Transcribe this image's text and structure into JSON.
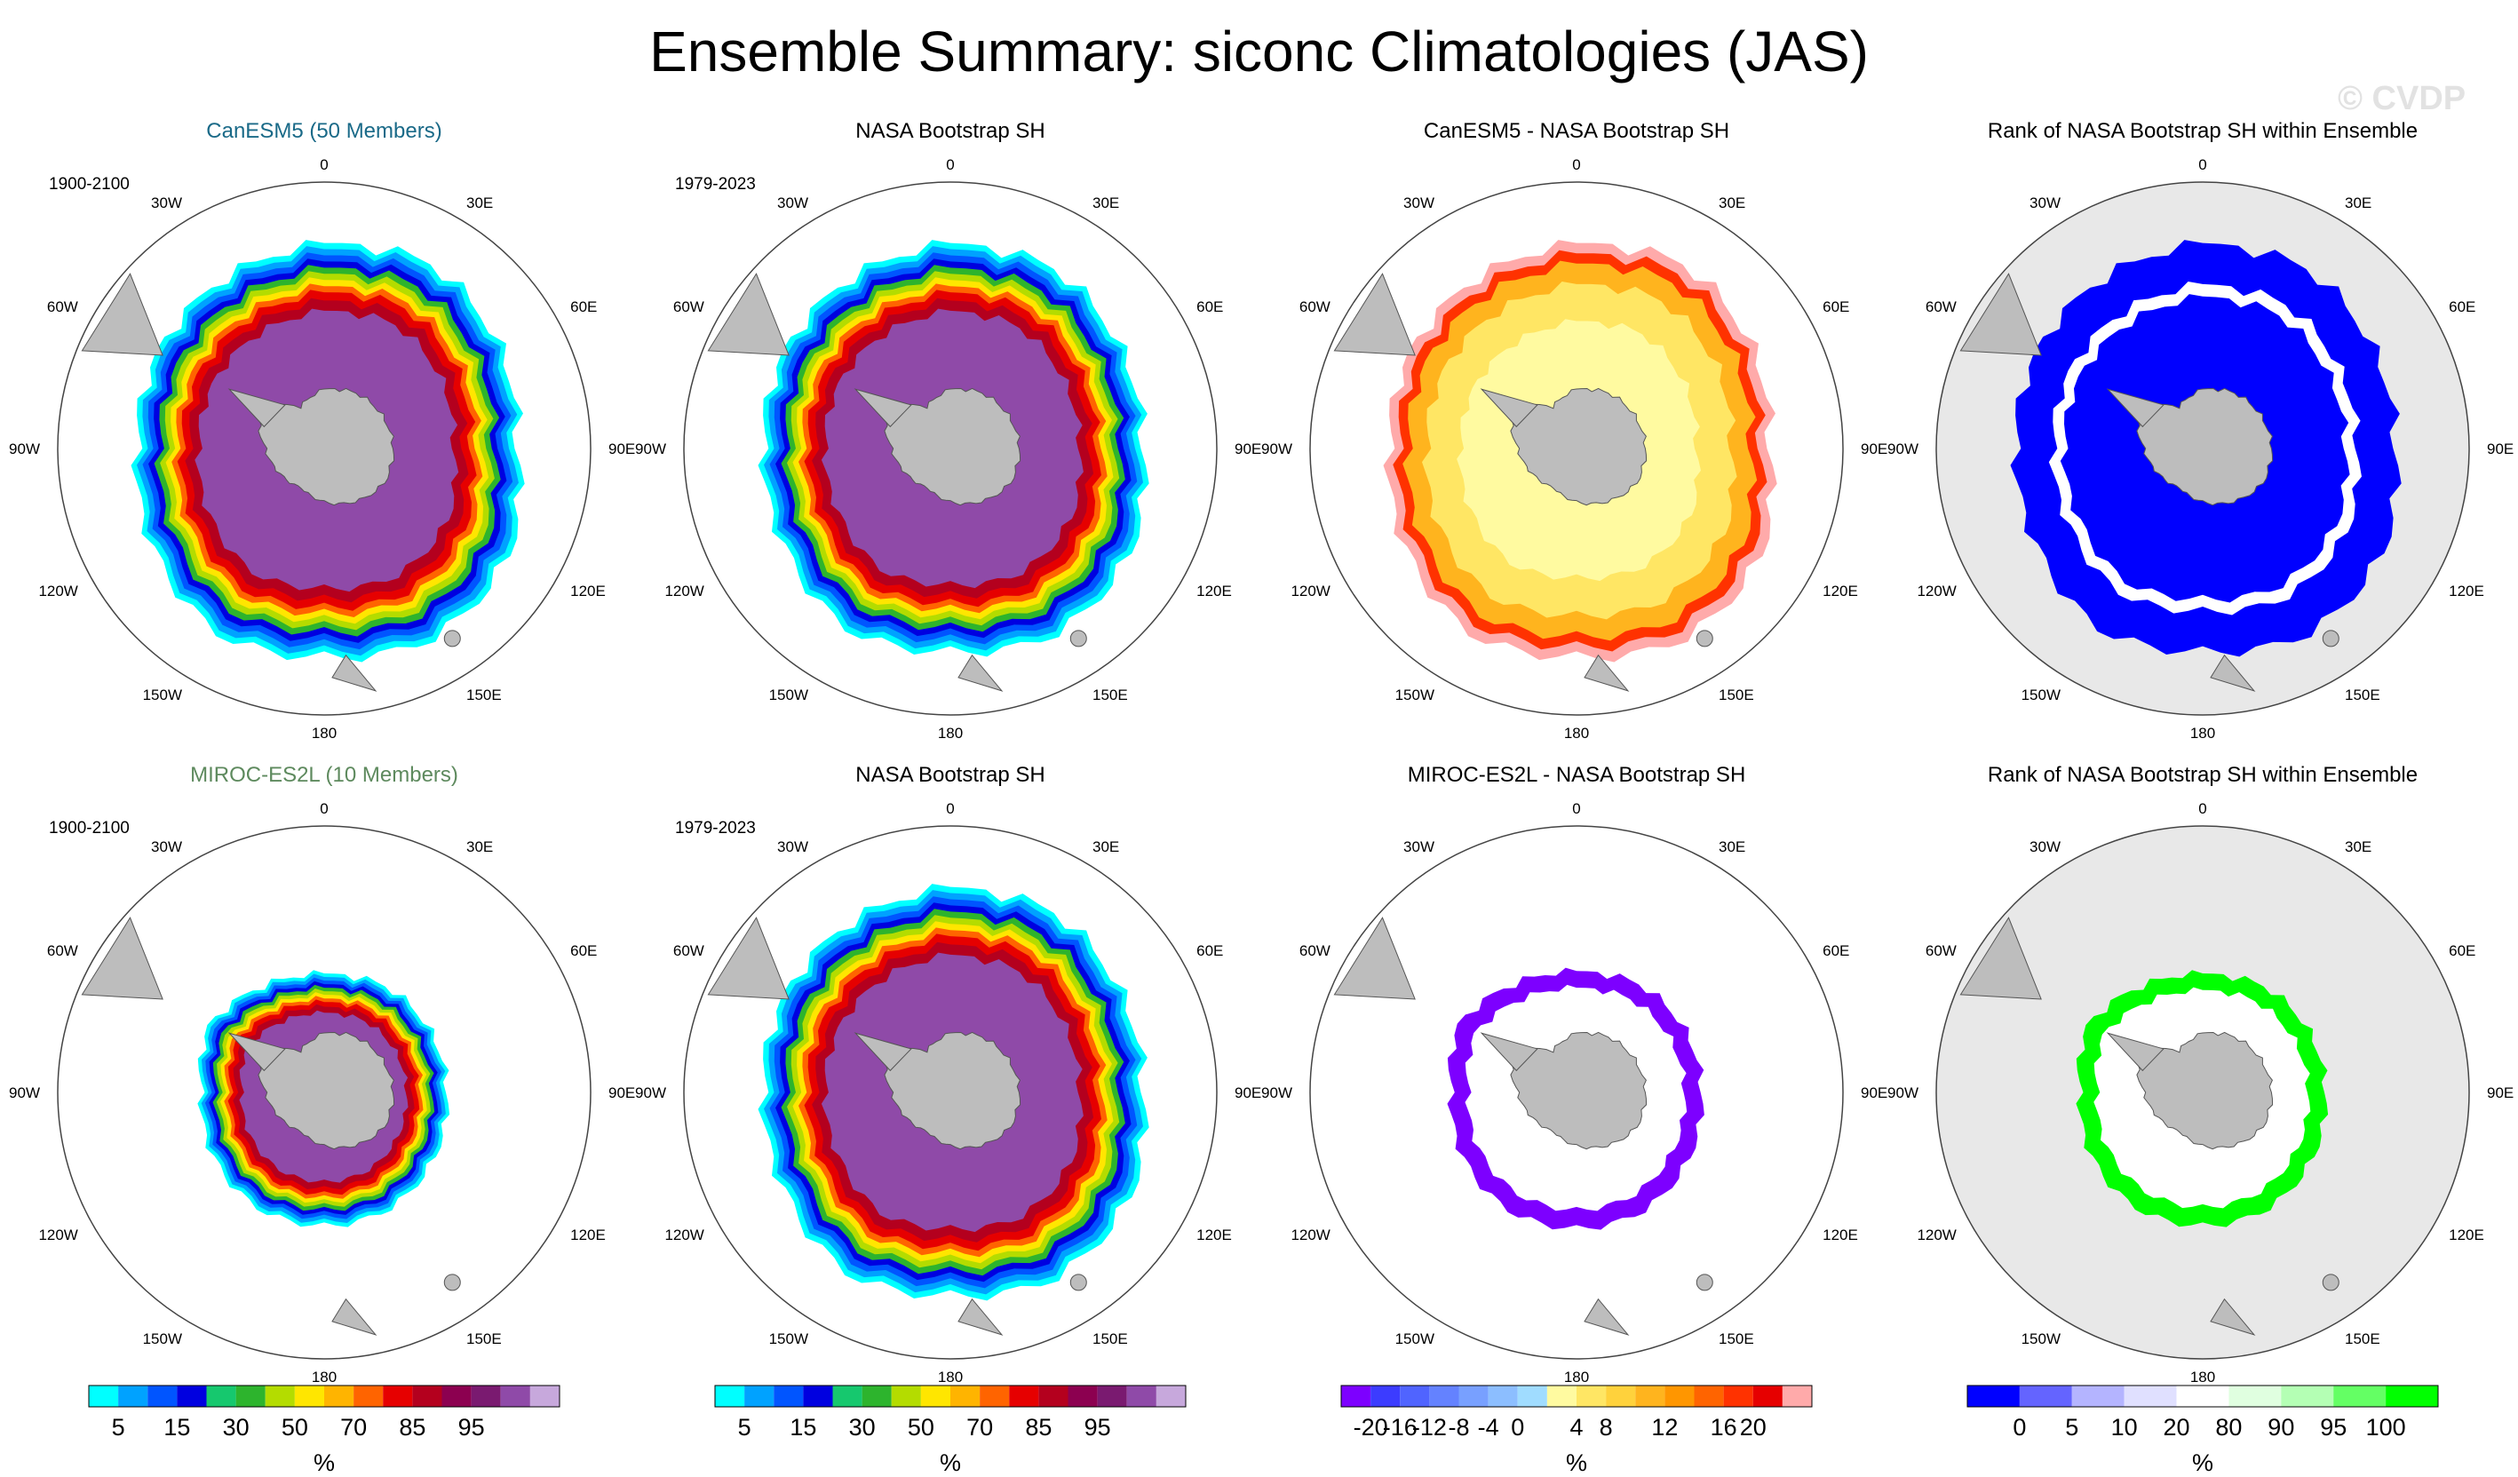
{
  "title": "Ensemble Summary: siconc Climatologies (JAS)",
  "watermark": "© CVDP",
  "unit": "%",
  "chart_data": {
    "type": "map",
    "variable": "siconc",
    "season": "JAS",
    "projection": "south polar stereographic",
    "longitude_labels": [
      "0",
      "30E",
      "60E",
      "90E",
      "120E",
      "150E",
      "180",
      "150W",
      "120W",
      "90W",
      "60W",
      "30W"
    ],
    "colors": {
      "land": "#bdbdbd",
      "ocean_missing": "#e8e8e8",
      "sic": [
        "#00ffff",
        "#00a2ff",
        "#0055ff",
        "#0000e0",
        "#16c86e",
        "#2db42d",
        "#b4dc00",
        "#ffe600",
        "#ffb400",
        "#ff6400",
        "#e60000",
        "#b4001e",
        "#8c0050",
        "#7a1a70",
        "#8f4aa8",
        "#c7a8dc"
      ],
      "diff": [
        "#7d00ff",
        "#3c3cff",
        "#5064ff",
        "#6482ff",
        "#78a0ff",
        "#8cbeff",
        "#a0dcff",
        "#fffaa0",
        "#ffe664",
        "#ffd23c",
        "#ffb41e",
        "#ff9600",
        "#ff6400",
        "#ff3200",
        "#e60000",
        "#ffaaaa"
      ],
      "rank": [
        "#0000ff",
        "#6464ff",
        "#b4b4ff",
        "#e0e0ff",
        "#ffffff",
        "#e0ffe0",
        "#b4ffb4",
        "#64ff64",
        "#00ff00"
      ]
    },
    "rows": [
      {
        "model_panel": {
          "title": "CanESM5 (50 Members)",
          "years": "1900-2100",
          "title_color": "#1a6a88"
        },
        "obs_panel": {
          "title": "NASA Bootstrap SH",
          "years": "1979-2023"
        },
        "diff_panel": {
          "title": "CanESM5 - NASA Bootstrap SH"
        },
        "rank_panel": {
          "title": "Rank of NASA Bootstrap SH within Ensemble"
        },
        "model_ice_extent": [
          0.76,
          0.8,
          0.76,
          0.72,
          0.8,
          0.82,
          0.78,
          0.8,
          0.74,
          0.7,
          0.72,
          0.74
        ],
        "obs_ice_extent": [
          0.76,
          0.78,
          0.74,
          0.72,
          0.78,
          0.8,
          0.76,
          0.78,
          0.72,
          0.7,
          0.72,
          0.74
        ],
        "diff_dominant": "positive",
        "rank_dominant": "low"
      },
      {
        "model_panel": {
          "title": "MIROC-ES2L (10 Members)",
          "years": "1900-2100",
          "title_color": "#5e8a5e"
        },
        "obs_panel": {
          "title": "NASA Bootstrap SH",
          "years": "1979-2023"
        },
        "diff_panel": {
          "title": "MIROC-ES2L - NASA Bootstrap SH"
        },
        "rank_panel": {
          "title": "Rank of NASA Bootstrap SH within Ensemble"
        },
        "model_ice_extent": [
          0.44,
          0.46,
          0.46,
          0.46,
          0.48,
          0.5,
          0.5,
          0.5,
          0.48,
          0.46,
          0.5,
          0.46
        ],
        "obs_ice_extent": [
          0.76,
          0.78,
          0.74,
          0.72,
          0.78,
          0.8,
          0.76,
          0.78,
          0.72,
          0.7,
          0.72,
          0.74
        ],
        "diff_dominant": "negative",
        "rank_dominant": "high"
      }
    ],
    "colorbars": [
      {
        "id": "sic-model",
        "palette": "sic",
        "tick_labels": [
          "5",
          "15",
          "30",
          "50",
          "70",
          "85",
          "95"
        ],
        "tick_boundaries": [
          1,
          3,
          5,
          7,
          9,
          11,
          13
        ],
        "unit": "%"
      },
      {
        "id": "sic-obs",
        "palette": "sic",
        "tick_labels": [
          "5",
          "15",
          "30",
          "50",
          "70",
          "85",
          "95"
        ],
        "tick_boundaries": [
          1,
          3,
          5,
          7,
          9,
          11,
          13
        ],
        "unit": "%"
      },
      {
        "id": "diff",
        "palette": "diff",
        "tick_labels": [
          "-20",
          "-16",
          "-12",
          "-8",
          "-4",
          "0",
          "4",
          "8",
          "12",
          "16",
          "20"
        ],
        "tick_boundaries": [
          1,
          2,
          3,
          4,
          5,
          6,
          8,
          9,
          11,
          13,
          14
        ],
        "unit": "%"
      },
      {
        "id": "rank",
        "palette": "rank",
        "tick_labels": [
          "0",
          "5",
          "10",
          "20",
          "80",
          "90",
          "95",
          "100"
        ],
        "tick_boundaries": [
          1,
          2,
          3,
          4,
          5,
          6,
          7,
          8
        ],
        "unit": "%"
      }
    ]
  }
}
